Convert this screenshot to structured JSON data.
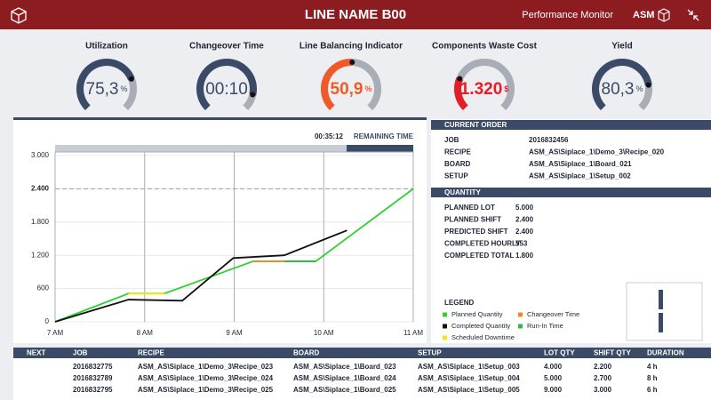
{
  "header": {
    "title": "LINE NAME B00",
    "subtitle": "Performance Monitor",
    "brand": "ASM"
  },
  "gauges": [
    {
      "label": "Utilization",
      "value": "75,3",
      "unit": "%",
      "level": 75.3,
      "color": "#3b4a66"
    },
    {
      "label": "Changeover Time",
      "value": "00:10",
      "unit": "",
      "level": 88,
      "color": "#3b4a66"
    },
    {
      "label": "Line Balancing Indicator",
      "value": "50,9",
      "unit": "%",
      "level": 50.9,
      "color": "#f05a28"
    },
    {
      "label": "Components Waste Cost",
      "value": "1.320",
      "unit": "$",
      "level": 25,
      "color": "#e41e26"
    },
    {
      "label": "Yield",
      "value": "80,3",
      "unit": "%",
      "level": 80.3,
      "color": "#3b4a66"
    }
  ],
  "chart_data": {
    "type": "line",
    "remaining_time": "00:35:12",
    "remaining_label": "REMAINING TIME",
    "xlim": [
      7,
      11
    ],
    "ylim": [
      0,
      3000
    ],
    "xticks": [
      {
        "value": 7,
        "label": "7 AM"
      },
      {
        "value": 8,
        "label": "8 AM"
      },
      {
        "value": 9,
        "label": "9 AM"
      },
      {
        "value": 10,
        "label": "10 AM"
      },
      {
        "value": 11,
        "label": "11 AM"
      }
    ],
    "yticks": [
      0,
      600,
      {
        "value": 1200,
        "label": "1.200"
      },
      {
        "value": 1800,
        "label": "1.800"
      },
      {
        "value": 2400,
        "label": "2.400"
      },
      {
        "value": 3000,
        "label": "3.000"
      }
    ],
    "target": 2400,
    "grid": true,
    "legend_title": "LEGEND",
    "series": [
      {
        "name": "Planned Quantity",
        "color": "#2fd12f",
        "x": [
          7,
          7.82,
          8.22,
          9.21,
          9.91,
          11
        ],
        "values": [
          0,
          510,
          510,
          1090,
          1090,
          2400
        ]
      },
      {
        "name": "Changeover Time",
        "color": "#f0891e",
        "x": [
          9.21,
          9.56
        ],
        "values": [
          1090,
          1090
        ]
      },
      {
        "name": "Completed Quantity",
        "color": "#111111",
        "x": [
          7,
          7.82,
          8.42,
          8.99,
          9.56,
          10.26
        ],
        "values": [
          0,
          400,
          380,
          1150,
          1200,
          1650
        ]
      },
      {
        "name": "Run-In Time",
        "color": "#3ab54a",
        "x": [
          9.56,
          9.91
        ],
        "values": [
          1090,
          1090
        ]
      },
      {
        "name": "Scheduled Downtime",
        "color": "#f5e614",
        "x": [
          7.82,
          8.22
        ],
        "values": [
          510,
          510
        ]
      }
    ]
  },
  "current_order": {
    "title": "CURRENT ORDER",
    "rows": [
      [
        "JOB",
        "2016832456"
      ],
      [
        "RECIPE",
        "ASM_AS\\Siplace_1\\Demo_3\\Recipe_020"
      ],
      [
        "BOARD",
        "ASM_AS\\Siplace_1\\Board_021"
      ],
      [
        "SETUP",
        "ASM_AS\\Siplace_1\\Setup_002"
      ]
    ]
  },
  "quantity": {
    "title": "QUANTITY",
    "rows": [
      [
        "PLANNED  LOT",
        "5.000"
      ],
      [
        "PLANNED SHIFT",
        "2.400"
      ],
      [
        "PREDICTED SHIFT",
        "2.400"
      ],
      [
        "COMPLETED HOURLY",
        "553"
      ],
      [
        "COMPLETED TOTAL",
        "1.800"
      ]
    ]
  },
  "table": {
    "header": [
      "NEXT",
      "JOB",
      "RECIPE",
      "BOARD",
      "SETUP",
      "LOT QTY",
      "SHIFT QTY",
      "DURATION"
    ],
    "rows": [
      [
        "",
        "2016832775",
        "ASM_AS\\Siplace_1\\Demo_3\\Recipe_023",
        "ASM_AS\\Siplace_1\\Board_023",
        "ASM_AS\\Siplace_1\\Setup_003",
        "4.000",
        "2.200",
        "4 h"
      ],
      [
        "",
        "2016832789",
        "ASM_AS\\Siplace_1\\Demo_3\\Recipe_024",
        "ASM_AS\\Siplace_1\\Board_024",
        "ASM_AS\\Siplace_1\\Setup_004",
        "5.000",
        "2.700",
        "8 h"
      ],
      [
        "",
        "2016832795",
        "ASM_AS\\Siplace_1\\Demo_3\\Recipe_025",
        "ASM_AS\\Siplace_1\\Board_025",
        "ASM_AS\\Siplace_1\\Setup_005",
        "9.000",
        "3.000",
        "6 h"
      ]
    ]
  }
}
